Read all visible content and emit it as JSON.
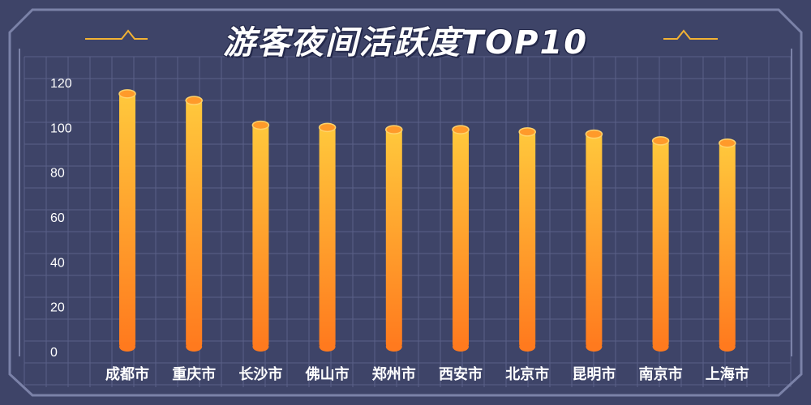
{
  "colors": {
    "background": "#3e4468",
    "grid": "#5a6088",
    "frame": "#7b82a8",
    "bar_top": "#ffc83c",
    "bar_bottom": "#ff7a1e",
    "accent_line": "#f2b233"
  },
  "chart_data": {
    "type": "bar",
    "title": "游客夜间活跃度TOP10",
    "categories": [
      "成都市",
      "重庆市",
      "长沙市",
      "佛山市",
      "郑州市",
      "西安市",
      "北京市",
      "昆明市",
      "南京市",
      "上海市"
    ],
    "values": [
      115,
      112,
      101,
      100,
      99,
      99,
      98,
      97,
      94,
      93
    ],
    "ylim": [
      0,
      120
    ],
    "yticks": [
      0,
      20,
      40,
      60,
      80,
      100,
      120
    ],
    "xlabel": "",
    "ylabel": "",
    "grid": true,
    "legend": "none"
  }
}
